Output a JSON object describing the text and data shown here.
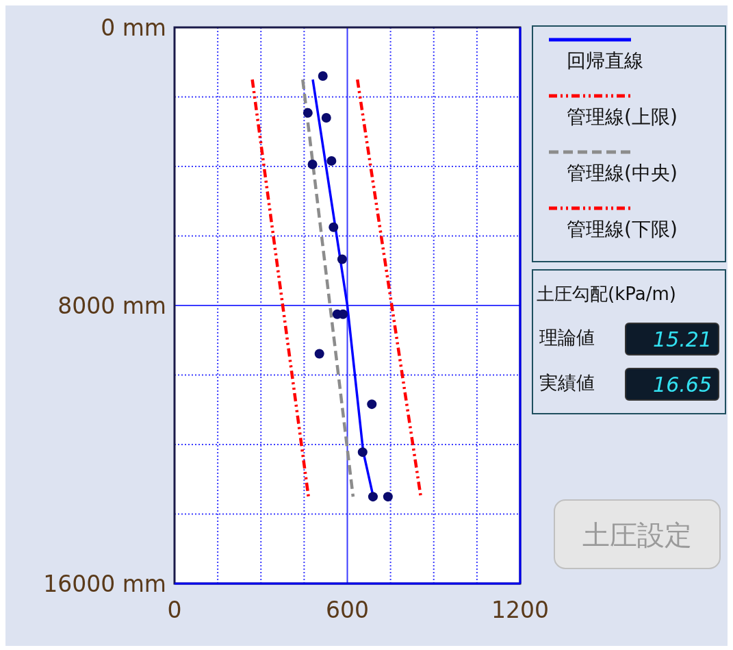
{
  "chart_data": {
    "type": "scatter",
    "ylim": [
      16000,
      0
    ],
    "yticks": [
      {
        "value": 0,
        "label": "0 mm"
      },
      {
        "value": 2000,
        "label": null
      },
      {
        "value": 4000,
        "label": null
      },
      {
        "value": 6000,
        "label": null
      },
      {
        "value": 8000,
        "label": "8000 mm"
      },
      {
        "value": 10000,
        "label": null
      },
      {
        "value": 12000,
        "label": null
      },
      {
        "value": 14000,
        "label": null
      },
      {
        "value": 16000,
        "label": "16000 mm"
      }
    ],
    "xlim": [
      0,
      1200
    ],
    "xticks": [
      0,
      {
        "value": 150,
        "label": null
      },
      {
        "value": 300,
        "label": null
      },
      {
        "value": 450,
        "label": null
      },
      600,
      {
        "value": 750,
        "label": null
      },
      {
        "value": 900,
        "label": null
      },
      {
        "value": 1050,
        "label": null
      },
      1200
    ],
    "grid": true,
    "legend": "right",
    "series": [
      {
        "marker": "circle",
        "color": "#0a0a6e",
        "x": [
          515,
          463,
          527,
          479,
          545,
          552,
          582,
          565,
          585,
          503,
          685,
          653,
          689,
          741
        ],
        "values": [
          1400,
          2460,
          2600,
          3940,
          3840,
          5750,
          6670,
          8250,
          8250,
          9390,
          10840,
          12220,
          13500,
          13500
        ]
      },
      {
        "type": "line",
        "name": "回帰直線",
        "color": "#0000ff",
        "line_style": "solid",
        "x": [
          480,
          600,
          655,
          690
        ],
        "values": [
          1500,
          8000,
          12200,
          13500
        ]
      },
      {
        "type": "line",
        "name": "管理線(上限)",
        "color": "#ff0000",
        "line_style": "dashdot",
        "x": [
          270,
          465
        ],
        "values": [
          1500,
          13500
        ]
      },
      {
        "type": "line",
        "name": "管理線(中央)",
        "color": "#8c8c8c",
        "line_style": "dashed",
        "x": [
          445,
          620
        ],
        "values": [
          1500,
          13500
        ]
      },
      {
        "type": "line",
        "name": "管理線(下限)",
        "color": "#ff0000",
        "line_style": "dashdot",
        "x": [
          635,
          855
        ],
        "values": [
          1500,
          13500
        ]
      }
    ],
    "annotations": [
      "土圧勾配(kPa/m)",
      "理論値",
      "15.21",
      "実績値",
      "16.65",
      "土圧設定"
    ]
  }
}
